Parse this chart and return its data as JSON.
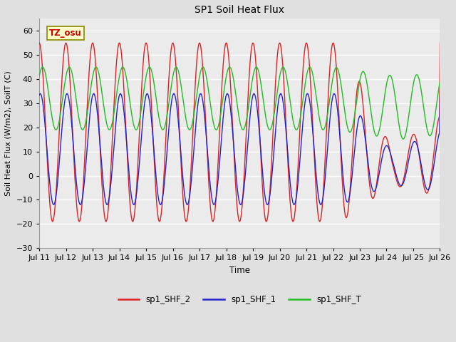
{
  "title": "SP1 Soil Heat Flux",
  "ylabel": "Soil Heat Flux (W/m2), SoilT (C)",
  "xlabel": "Time",
  "annotation_text": "TZ_osu",
  "annotation_color": "#cc0000",
  "annotation_bg": "#ffffcc",
  "annotation_border": "#888800",
  "ylim": [
    -30,
    65
  ],
  "yticks": [
    -30,
    -20,
    -10,
    0,
    10,
    20,
    30,
    40,
    50,
    60
  ],
  "legend": [
    {
      "label": "sp1_SHF_2",
      "color": "#dd2222"
    },
    {
      "label": "sp1_SHF_1",
      "color": "#2222cc"
    },
    {
      "label": "sp1_SHF_T",
      "color": "#22bb22"
    }
  ],
  "bg_color": "#e0e0e0",
  "plot_bg": "#ebebeb",
  "grid_color": "#ffffff",
  "n_days": 16,
  "start_day": 11,
  "points_per_day": 48
}
